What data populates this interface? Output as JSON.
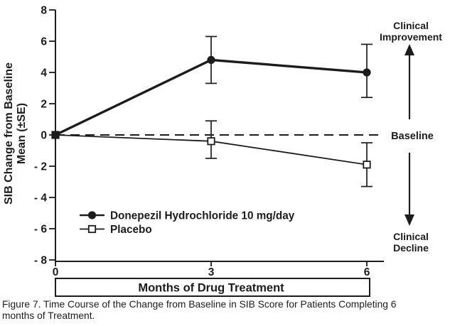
{
  "figure": {
    "caption": "Figure 7. Time Course of the Change from Baseline in SIB Score for Patients Completing 6 months of Treatment."
  },
  "chart_data": {
    "type": "line",
    "title": "",
    "xlabel": "Months of Drug Treatment",
    "ylabel": [
      "SIB Change from Baseline",
      "Mean (±SE)"
    ],
    "x": [
      0,
      3,
      6
    ],
    "x_tick_labels": [
      "0",
      "3",
      "6"
    ],
    "y_ticks": [
      8,
      6,
      4,
      2,
      0,
      -2,
      -4,
      -6,
      -8
    ],
    "y_tick_labels": [
      "8",
      "6",
      "4",
      "2",
      "0",
      "- 2",
      "- 4",
      "- 6",
      "- 8"
    ],
    "ylim": [
      -8,
      8
    ],
    "xlim": [
      0,
      6
    ],
    "grid": false,
    "baseline": {
      "y": 0,
      "style": "dashed"
    },
    "series": [
      {
        "name": "Donepezil Hydrochloride 10 mg/day",
        "marker": "filled-circle",
        "values": [
          0,
          4.8,
          4.0
        ],
        "error_low": [
          null,
          3.3,
          2.4
        ],
        "error_high": [
          null,
          6.3,
          5.8
        ]
      },
      {
        "name": "Placebo",
        "marker": "open-square",
        "values": [
          0,
          -0.4,
          -1.9
        ],
        "error_low": [
          null,
          -1.5,
          -3.3
        ],
        "error_high": [
          null,
          0.9,
          -0.5
        ]
      }
    ],
    "legend": {
      "position": "inside-lower-left"
    },
    "annotations": {
      "improvement": [
        "Clinical",
        "Improvement"
      ],
      "baseline_label": "Baseline",
      "decline": [
        "Clinical",
        "Decline"
      ]
    },
    "colors": {
      "ink": "#1c1c1c",
      "background": "#ffffff"
    }
  }
}
